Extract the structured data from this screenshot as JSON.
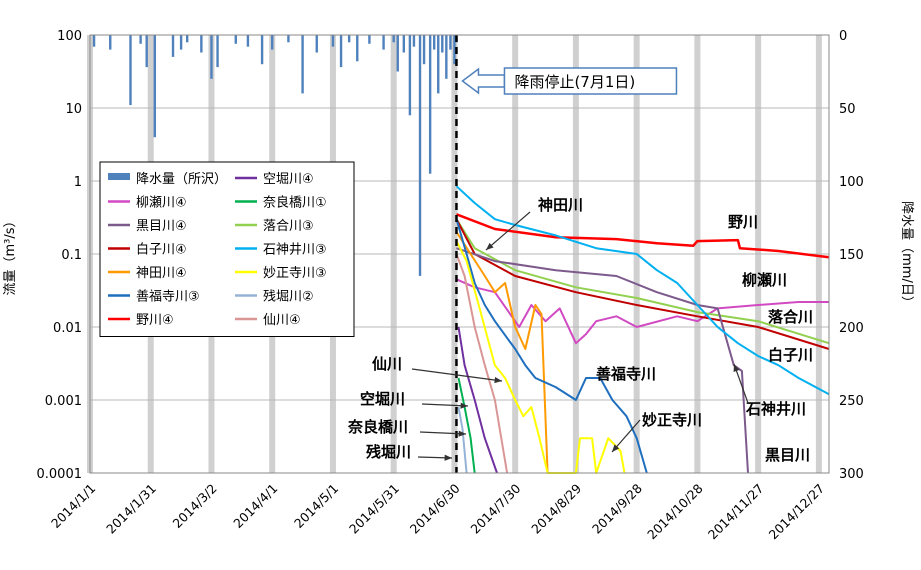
{
  "chart_data": {
    "type": "line",
    "ylabel_left": "流量（m³/s）",
    "ylabel_right": "降水量（mm/日）",
    "x_ticks": [
      "2014/1/1",
      "2014/1/31",
      "2014/3/2",
      "2014/4/1",
      "2014/5/1",
      "2014/5/31",
      "2014/6/30",
      "2014/7/30",
      "2014/8/29",
      "2014/9/28",
      "2014/10/28",
      "2014/11/27",
      "2014/12/27"
    ],
    "y_left_scale": "log",
    "y_left_ticks": [
      "0.0001",
      "0.001",
      "0.01",
      "0.1",
      "1",
      "10",
      "100"
    ],
    "ylim_left": [
      0.0001,
      100
    ],
    "y_right_ticks": [
      "0",
      "50",
      "100",
      "150",
      "200",
      "250",
      "300"
    ],
    "ylim_right": [
      0,
      300
    ],
    "right_axis_inverted": true,
    "grid": "vertical bands",
    "x_range_days": [
      0,
      365
    ],
    "precip_series": {
      "name": "降水量（所沢）",
      "color": "#4f81bd",
      "days": [
        2,
        10,
        20,
        25,
        28,
        32,
        41,
        45,
        48,
        55,
        60,
        63,
        72,
        78,
        85,
        90,
        98,
        105,
        112,
        120,
        124,
        128,
        132,
        138,
        145,
        150,
        152,
        155,
        158,
        160,
        163,
        165,
        168,
        170,
        172,
        174,
        176,
        178,
        180,
        181
      ],
      "values": [
        8,
        10,
        48,
        6,
        22,
        70,
        15,
        10,
        5,
        12,
        30,
        22,
        6,
        8,
        20,
        10,
        5,
        40,
        12,
        8,
        22,
        5,
        18,
        6,
        10,
        5,
        25,
        12,
        55,
        8,
        165,
        20,
        95,
        10,
        40,
        12,
        30,
        10,
        20,
        5
      ]
    },
    "stop_marker": {
      "day": 181,
      "label": "降雨停止(7月1日)"
    },
    "series": [
      {
        "name": "野川④",
        "color": "#ff0000",
        "points": [
          [
            181,
            0.35
          ],
          [
            200,
            0.22
          ],
          [
            230,
            0.17
          ],
          [
            260,
            0.16
          ],
          [
            280,
            0.14
          ],
          [
            298,
            0.13
          ],
          [
            300,
            0.15
          ],
          [
            320,
            0.155
          ],
          [
            321,
            0.12
          ],
          [
            340,
            0.11
          ],
          [
            365,
            0.09
          ]
        ]
      },
      {
        "name": "柳瀬川④",
        "color": "#d24ac3",
        "points": [
          [
            181,
            0.045
          ],
          [
            190,
            0.035
          ],
          [
            200,
            0.03
          ],
          [
            212,
            0.01
          ],
          [
            218,
            0.02
          ],
          [
            225,
            0.012
          ],
          [
            232,
            0.018
          ],
          [
            240,
            0.006
          ],
          [
            245,
            0.008
          ],
          [
            250,
            0.012
          ],
          [
            260,
            0.014
          ],
          [
            270,
            0.01
          ],
          [
            290,
            0.014
          ],
          [
            300,
            0.012
          ],
          [
            310,
            0.018
          ],
          [
            330,
            0.02
          ],
          [
            350,
            0.022
          ],
          [
            365,
            0.022
          ]
        ]
      },
      {
        "name": "落合川③",
        "color": "#92d050",
        "points": [
          [
            181,
            0.3
          ],
          [
            190,
            0.12
          ],
          [
            210,
            0.06
          ],
          [
            240,
            0.035
          ],
          [
            270,
            0.025
          ],
          [
            300,
            0.016
          ],
          [
            330,
            0.012
          ],
          [
            365,
            0.006
          ]
        ]
      },
      {
        "name": "白子川④",
        "color": "#c00000",
        "points": [
          [
            181,
            0.3
          ],
          [
            190,
            0.1
          ],
          [
            210,
            0.05
          ],
          [
            240,
            0.03
          ],
          [
            270,
            0.02
          ],
          [
            300,
            0.014
          ],
          [
            330,
            0.01
          ],
          [
            365,
            0.005
          ]
        ]
      },
      {
        "name": "黒目川④",
        "color": "#7d5a8c",
        "points": [
          [
            181,
            0.12
          ],
          [
            200,
            0.08
          ],
          [
            230,
            0.06
          ],
          [
            260,
            0.05
          ],
          [
            280,
            0.03
          ],
          [
            300,
            0.02
          ],
          [
            310,
            0.018
          ],
          [
            318,
            0.003
          ],
          [
            322,
            0.0025
          ],
          [
            325,
            0.0001
          ]
        ]
      },
      {
        "name": "石神井川③",
        "color": "#00b0f0",
        "points": [
          [
            181,
            0.85
          ],
          [
            190,
            0.5
          ],
          [
            200,
            0.3
          ],
          [
            210,
            0.25
          ],
          [
            230,
            0.18
          ],
          [
            250,
            0.12
          ],
          [
            270,
            0.1
          ],
          [
            280,
            0.06
          ],
          [
            290,
            0.04
          ],
          [
            300,
            0.02
          ],
          [
            310,
            0.01
          ],
          [
            320,
            0.006
          ],
          [
            330,
            0.004
          ],
          [
            340,
            0.003
          ],
          [
            350,
            0.002
          ],
          [
            365,
            0.0012
          ]
        ]
      },
      {
        "name": "神田川④",
        "color": "#ff9a00",
        "points": [
          [
            181,
            0.2
          ],
          [
            188,
            0.1
          ],
          [
            195,
            0.05
          ],
          [
            200,
            0.03
          ],
          [
            205,
            0.04
          ],
          [
            210,
            0.01
          ],
          [
            215,
            0.005
          ],
          [
            220,
            0.02
          ],
          [
            223,
            0.015
          ],
          [
            226,
            0.0001
          ]
        ]
      },
      {
        "name": "善福寺川③",
        "color": "#1f6fbf",
        "points": [
          [
            181,
            0.3
          ],
          [
            186,
            0.1
          ],
          [
            190,
            0.04
          ],
          [
            195,
            0.02
          ],
          [
            200,
            0.012
          ],
          [
            210,
            0.005
          ],
          [
            215,
            0.003
          ],
          [
            220,
            0.002
          ],
          [
            230,
            0.0015
          ],
          [
            240,
            0.001
          ],
          [
            245,
            0.002
          ],
          [
            252,
            0.002
          ],
          [
            258,
            0.001
          ],
          [
            265,
            0.0006
          ],
          [
            270,
            0.0003
          ],
          [
            275,
            0.0001
          ]
        ]
      },
      {
        "name": "妙正寺川③",
        "color": "#ffff00",
        "points": [
          [
            181,
            0.15
          ],
          [
            186,
            0.08
          ],
          [
            192,
            0.02
          ],
          [
            200,
            0.003
          ],
          [
            205,
            0.002
          ],
          [
            210,
            0.001
          ],
          [
            214,
            0.0006
          ],
          [
            218,
            0.0008
          ],
          [
            222,
            0.0003
          ],
          [
            226,
            0.0001
          ],
          [
            240,
            0.0001
          ],
          [
            242,
            0.0003
          ],
          [
            248,
            0.0003
          ],
          [
            250,
            0.0001
          ],
          [
            256,
            0.0003
          ],
          [
            262,
            0.0002
          ],
          [
            264,
            0.0001
          ]
        ]
      },
      {
        "name": "仙川④",
        "color": "#d99694",
        "points": [
          [
            181,
            0.1
          ],
          [
            185,
            0.05
          ],
          [
            190,
            0.01
          ],
          [
            195,
            0.003
          ],
          [
            200,
            0.001
          ],
          [
            206,
            0.0001
          ]
        ]
      },
      {
        "name": "空堀川④",
        "color": "#7030a0",
        "points": [
          [
            182,
            0.01
          ],
          [
            185,
            0.003
          ],
          [
            190,
            0.001
          ],
          [
            195,
            0.0003
          ],
          [
            201,
            0.0001
          ]
        ]
      },
      {
        "name": "奈良橋川①",
        "color": "#00b050",
        "points": [
          [
            182,
            0.002
          ],
          [
            185,
            0.0008
          ],
          [
            188,
            0.0003
          ],
          [
            190,
            0.0001
          ]
        ]
      },
      {
        "name": "残堀川②",
        "color": "#95b3d7",
        "points": [
          [
            182,
            0.0008
          ],
          [
            184,
            0.0004
          ],
          [
            186,
            0.0001
          ]
        ]
      }
    ],
    "legend": {
      "placement": "upper-left",
      "entries": [
        {
          "name": "降水量（所沢）",
          "color": "#4f81bd",
          "kind": "bar"
        },
        {
          "name": "空堀川④",
          "color": "#7030a0"
        },
        {
          "name": "柳瀬川④",
          "color": "#d24ac3"
        },
        {
          "name": "奈良橋川①",
          "color": "#00b050"
        },
        {
          "name": "黒目川④",
          "color": "#7d5a8c"
        },
        {
          "name": "落合川③",
          "color": "#92d050"
        },
        {
          "name": "白子川④",
          "color": "#c00000"
        },
        {
          "name": "石神井川③",
          "color": "#00b0f0"
        },
        {
          "name": "神田川④",
          "color": "#ff9a00"
        },
        {
          "name": "妙正寺川③",
          "color": "#ffff00"
        },
        {
          "name": "善福寺川③",
          "color": "#1f6fbf"
        },
        {
          "name": "残堀川②",
          "color": "#95b3d7"
        },
        {
          "name": "野川④",
          "color": "#ff0000"
        },
        {
          "name": "仙川④",
          "color": "#d99694"
        }
      ]
    },
    "annotations": [
      {
        "id": "kanda",
        "text": "神田川",
        "arrow": true
      },
      {
        "id": "nogawa",
        "text": "野川"
      },
      {
        "id": "yanase",
        "text": "柳瀬川"
      },
      {
        "id": "ochiai",
        "text": "落合川"
      },
      {
        "id": "shirako",
        "text": "白子川"
      },
      {
        "id": "zenpukuji",
        "text": "善福寺川"
      },
      {
        "id": "myoshoji",
        "text": "妙正寺川",
        "arrow": true
      },
      {
        "id": "shakujii",
        "text": "石神井川",
        "arrow": true
      },
      {
        "id": "kurome",
        "text": "黒目川"
      },
      {
        "id": "sengawa",
        "text": "仙川",
        "arrow": true
      },
      {
        "id": "karabori",
        "text": "空堀川",
        "arrow": true
      },
      {
        "id": "narahashi",
        "text": "奈良橋川",
        "arrow": true
      },
      {
        "id": "zanbori",
        "text": "残堀川",
        "arrow": true
      }
    ]
  }
}
